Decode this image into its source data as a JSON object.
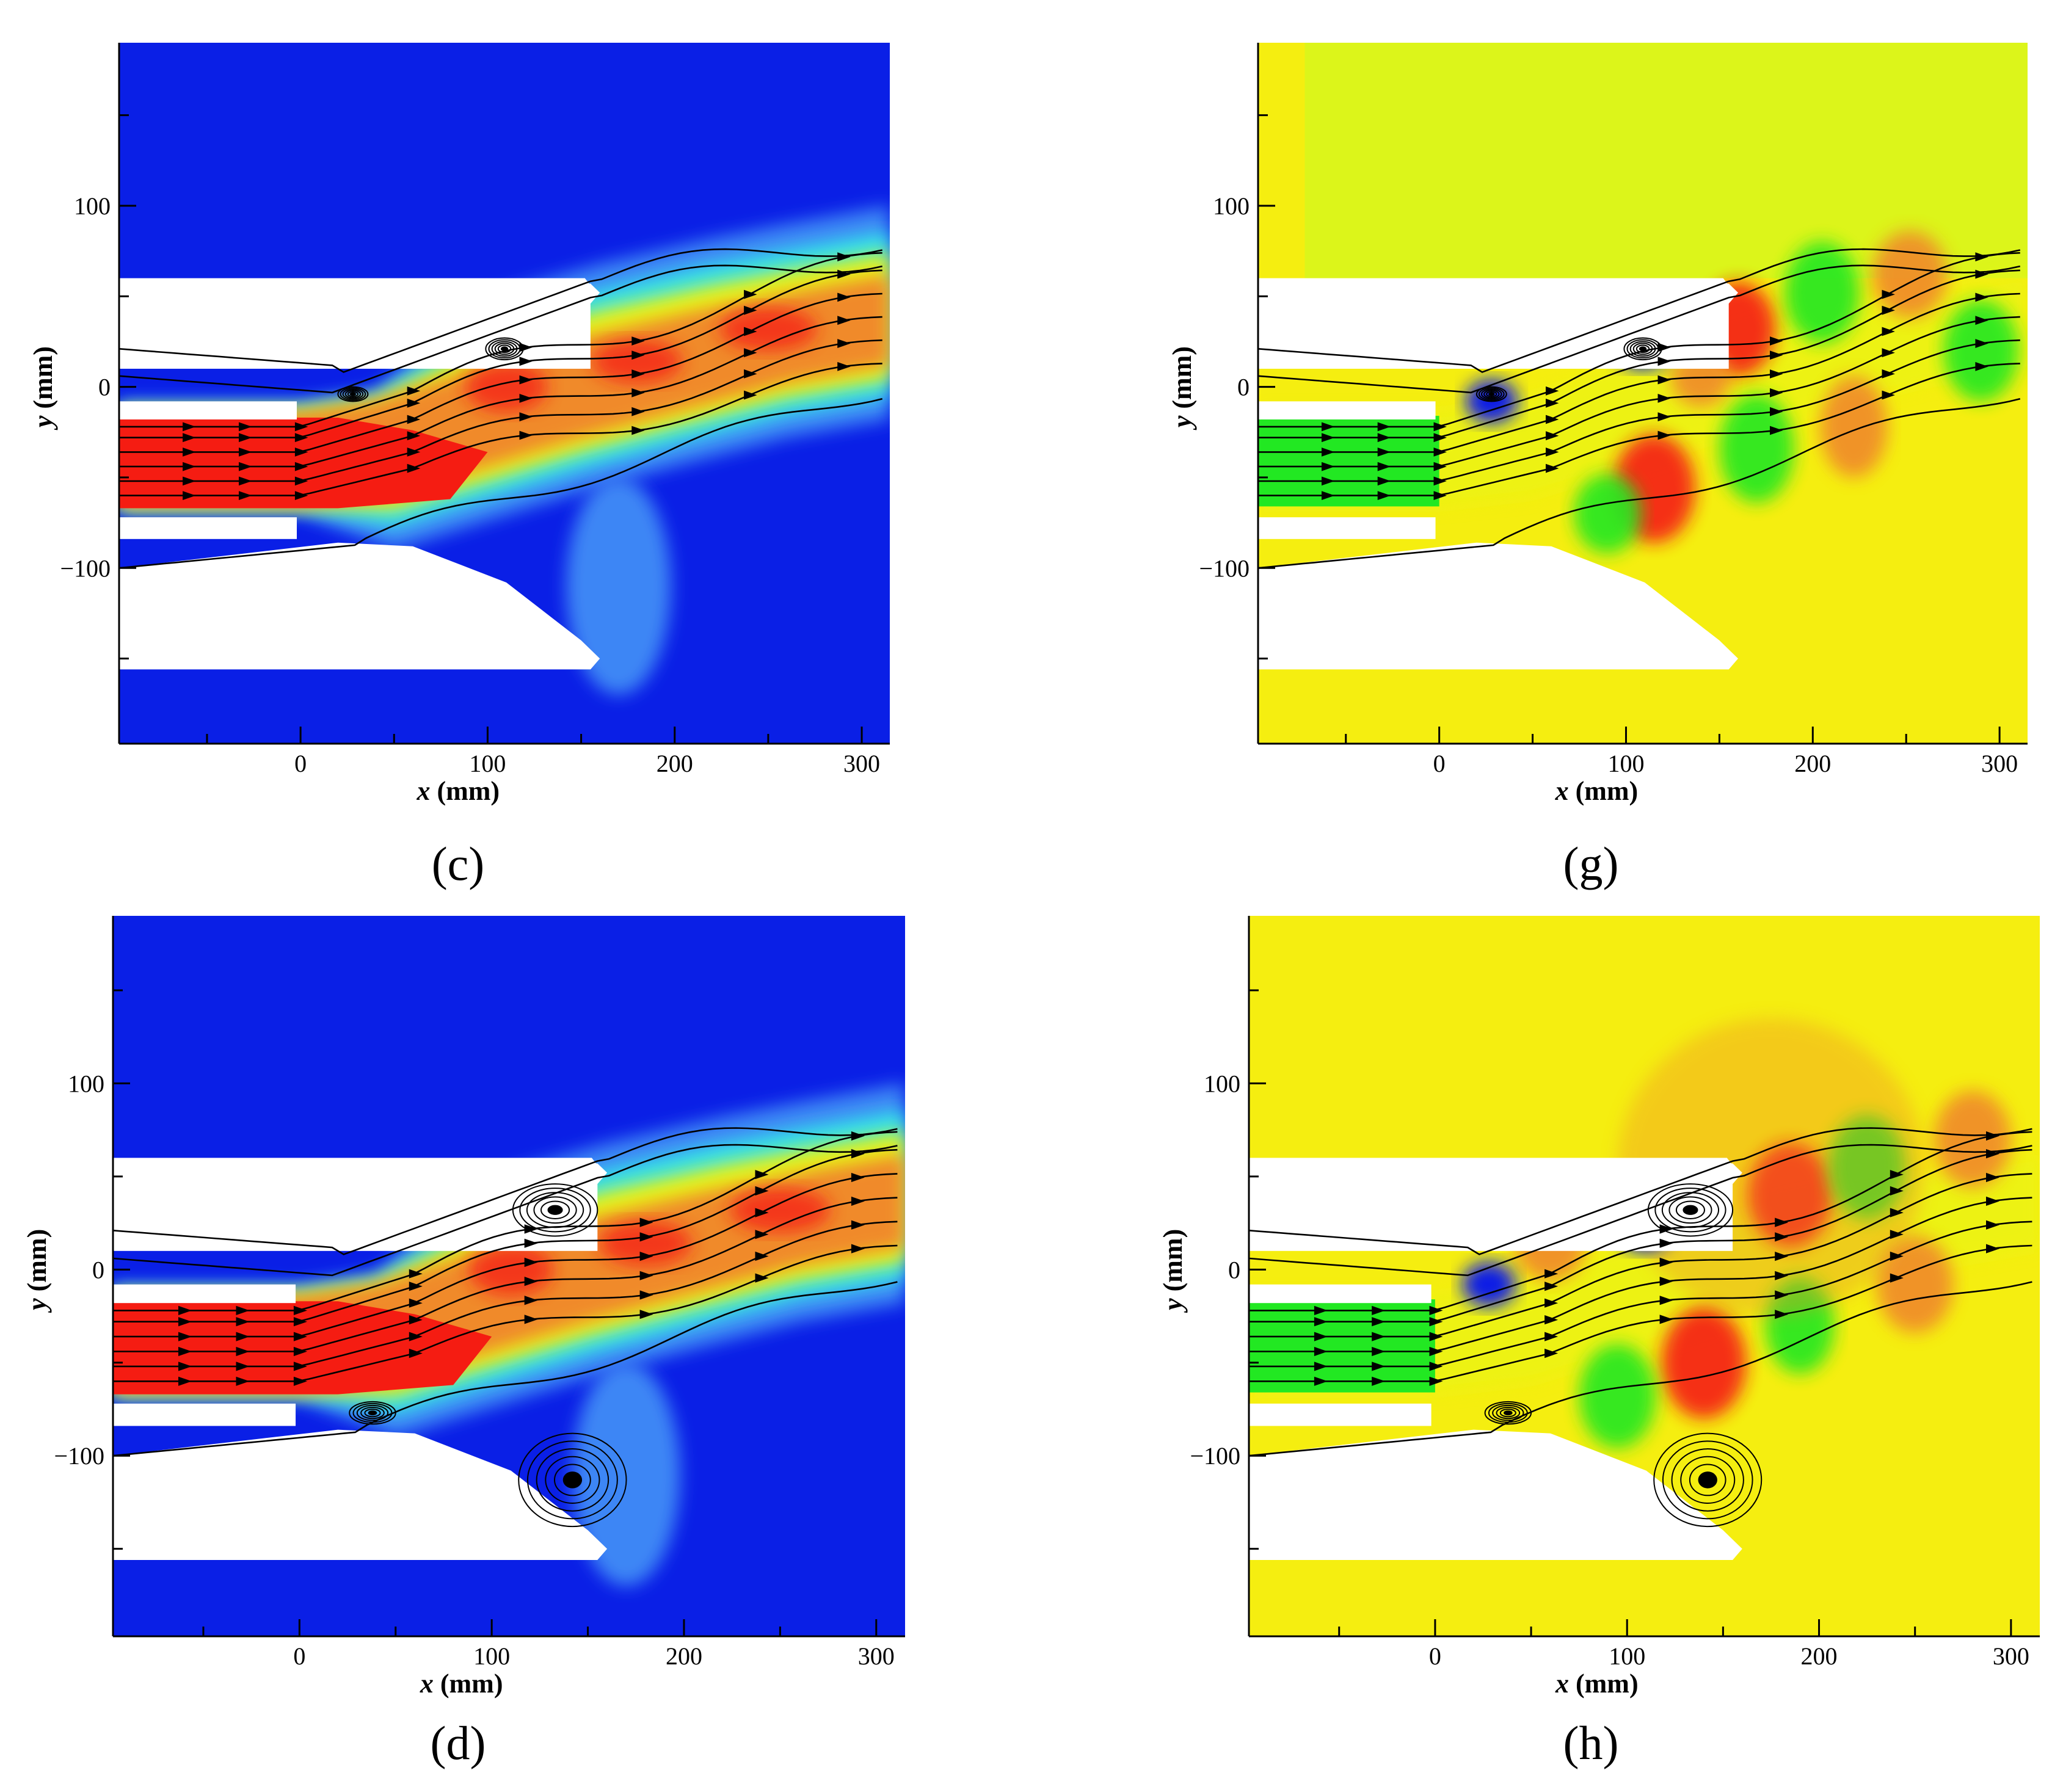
{
  "colors": {
    "jet_blue": "#0a1fe6",
    "jet_light_blue": "#3d86f5",
    "jet_cyan": "#35e2e8",
    "jet_green": "#22e822",
    "jet_yellow": "#e8f514",
    "jet_orange": "#f08a2a",
    "jet_red": "#f51c12",
    "field_yellow": "#f5ee10",
    "field_yellow_green": "#dcf51a",
    "streamline": "#000000",
    "wall": "#ffffff"
  },
  "chart_data": [
    {
      "panel": "c",
      "caption": "(c)",
      "type": "contour",
      "background": "blue",
      "xlabel_var": "x",
      "xlabel_unit": " (mm)",
      "ylabel_var": "y",
      "ylabel_unit": " (mm)",
      "xlim": [
        -97,
        315
      ],
      "ylim": [
        -197,
        190
      ],
      "xticks": [
        0,
        100,
        200,
        300
      ],
      "yticks": [
        -100,
        0,
        100
      ],
      "xtick_labels": [
        "0",
        "100",
        "200",
        "300"
      ],
      "ytick_labels": [
        "−100",
        "0",
        "100"
      ],
      "vortices": [
        [
          28,
          -4,
          8,
          4
        ],
        [
          109,
          21,
          10,
          6
        ]
      ]
    },
    {
      "panel": "g",
      "caption": "(g)",
      "type": "contour",
      "background": "yellow",
      "xlabel_var": "x",
      "xlabel_unit": " (mm)",
      "ylabel_var": "y",
      "ylabel_unit": " (mm)",
      "xlim": [
        -97,
        315
      ],
      "ylim": [
        -197,
        190
      ],
      "xticks": [
        0,
        100,
        200,
        300
      ],
      "yticks": [
        -100,
        0,
        100
      ],
      "xtick_labels": [
        "0",
        "100",
        "200",
        "300"
      ],
      "ytick_labels": [
        "−100",
        "0",
        "100"
      ],
      "vortices": [
        [
          28,
          -4,
          8,
          4
        ],
        [
          109,
          21,
          10,
          6
        ]
      ]
    },
    {
      "panel": "d",
      "caption": "(d)",
      "type": "contour",
      "background": "blue",
      "xlabel_var": "x",
      "xlabel_unit": " (mm)",
      "ylabel_var": "y",
      "ylabel_unit": " (mm)",
      "xlim": [
        -97,
        315
      ],
      "ylim": [
        -197,
        190
      ],
      "xticks": [
        0,
        100,
        200,
        300
      ],
      "yticks": [
        -100,
        0,
        100
      ],
      "xtick_labels": [
        "0",
        "100",
        "200",
        "300"
      ],
      "ytick_labels": [
        "−100",
        "0",
        "100"
      ],
      "vortices": [
        [
          38,
          -77,
          12,
          6
        ],
        [
          133,
          32,
          22,
          14
        ],
        [
          142,
          -113,
          28,
          25
        ]
      ]
    },
    {
      "panel": "h",
      "caption": "(h)",
      "type": "contour",
      "background": "yellow",
      "xlabel_var": "x",
      "xlabel_unit": " (mm)",
      "ylabel_var": "y",
      "ylabel_unit": " (mm)",
      "xlim": [
        -97,
        315
      ],
      "ylim": [
        -197,
        190
      ],
      "xticks": [
        0,
        100,
        200,
        300
      ],
      "yticks": [
        -100,
        0,
        100
      ],
      "xtick_labels": [
        "0",
        "100",
        "200",
        "300"
      ],
      "ytick_labels": [
        "−100",
        "0",
        "100"
      ],
      "vortices": [
        [
          38,
          -77,
          12,
          6
        ],
        [
          133,
          32,
          22,
          14
        ],
        [
          142,
          -113,
          28,
          25
        ]
      ]
    }
  ]
}
